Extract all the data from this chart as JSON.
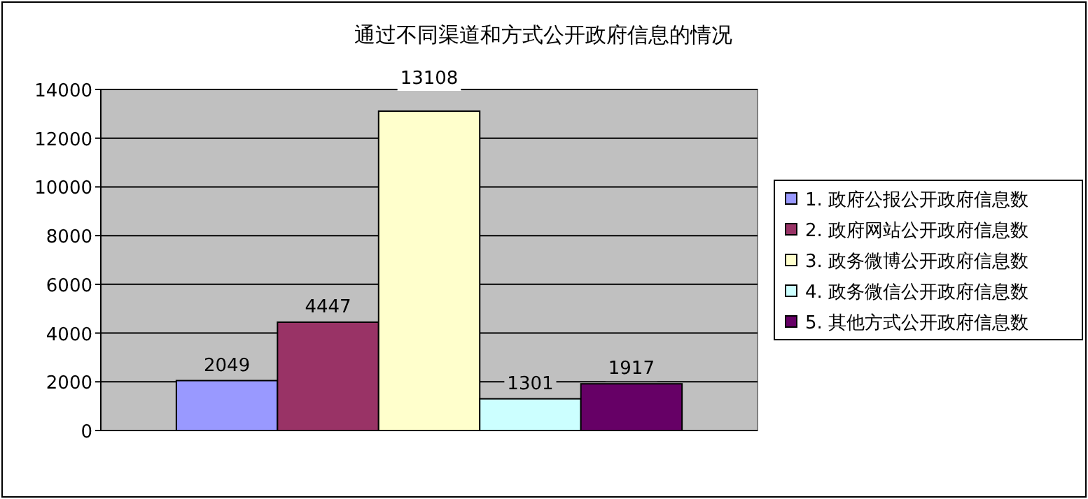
{
  "chart_data": {
    "type": "bar",
    "title": "通过不同渠道和方式公开政府信息的情况",
    "categories": [
      null
    ],
    "series": [
      {
        "name": "1. 政府公报公开政府信息数",
        "color": "#9999ff",
        "values": [
          2049
        ]
      },
      {
        "name": "2. 政府网站公开政府信息数",
        "color": "#993366",
        "values": [
          4447
        ]
      },
      {
        "name": "3. 政务微博公开政府信息数",
        "color": "#ffffcc",
        "values": [
          13108
        ]
      },
      {
        "name": "4. 政务微信公开政府信息数",
        "color": "#ccffff",
        "values": [
          1301
        ]
      },
      {
        "name": "5. 其他方式公开政府信息数",
        "color": "#660066",
        "values": [
          1917
        ]
      }
    ],
    "ylim": [
      0,
      14000
    ],
    "yticks": [
      0,
      2000,
      4000,
      6000,
      8000,
      10000,
      12000,
      14000
    ],
    "grid": "y",
    "legend": "right",
    "data_labels": true
  }
}
